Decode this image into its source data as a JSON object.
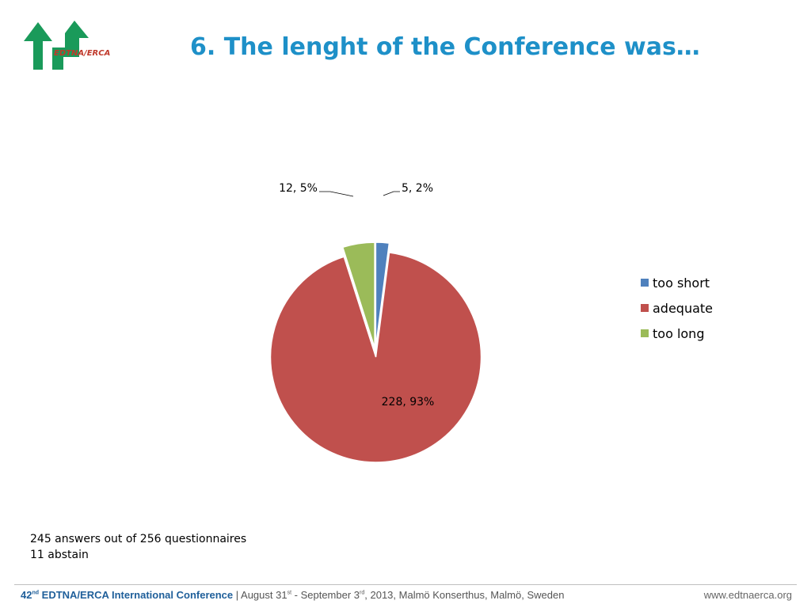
{
  "logo": {
    "text": "EDTNA/ERCA",
    "color": "#1a9a5a"
  },
  "slide_title": "6. The lenght of the Conference was…",
  "chart_data": {
    "type": "pie",
    "title": "",
    "slices": [
      {
        "label": "too short",
        "value": 5,
        "percent": 2,
        "data_label": "5, 2%",
        "color": "#4f81bd"
      },
      {
        "label": "adequate",
        "value": 228,
        "percent": 93,
        "data_label": "228, 93%",
        "color": "#c0504d"
      },
      {
        "label": "too long",
        "value": 12,
        "percent": 5,
        "data_label": "12, 5%",
        "color": "#9bbb59"
      }
    ],
    "exploded": true,
    "legend_position": "right"
  },
  "notes": {
    "line1": "245 answers out of 256 questionnaires",
    "line2": "11 abstain"
  },
  "footer": {
    "conf_num": "42",
    "conf_num_sup": "nd",
    "conf_name": " EDTNA/ERCA International Conference",
    "separator": " | ",
    "date_part1": "August 31",
    "date_sup1": "st",
    "date_part2": " - September 3",
    "date_sup2": "rd",
    "date_part3": ", 2013, Malmö Konserthus, Malmö, Sweden",
    "website": "www.edtnaerca.org"
  }
}
